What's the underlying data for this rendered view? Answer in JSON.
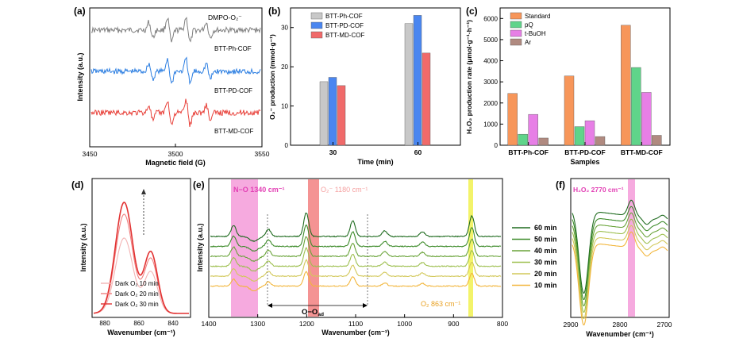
{
  "panels": {
    "a": {
      "label": "(a)",
      "xlabel": "Magnetic  field (G)",
      "ylabel": "Intensity (a.u.)",
      "xticks": [
        "3450",
        "3500",
        "3550"
      ],
      "annotation": "DMPO-O₂⁻",
      "series": [
        {
          "name": "BTT-Ph-COF",
          "color": "#7f7f7f"
        },
        {
          "name": "BTT-PD-COF",
          "color": "#2a7de1"
        },
        {
          "name": "BTT-MD-COF",
          "color": "#e8413a"
        }
      ]
    },
    "b": {
      "label": "(b)",
      "xlabel": "Time (min)",
      "ylabel": "O₂⁻ production (mmol·g⁻¹)",
      "legend": [
        "BTT-Ph-COF",
        "BTT-PD-COF",
        "BTT-MD-COF"
      ]
    },
    "c": {
      "label": "(c)",
      "xlabel": "Samples",
      "ylabel": "H₂O₂ production rate (μmol·g⁻¹·h⁻¹)",
      "legend": [
        "Standard",
        "pQ",
        "t-BuOH",
        "Ar"
      ]
    },
    "d": {
      "label": "(d)",
      "xlabel": "Wavenumber (cm⁻¹)",
      "ylabel": "Intensity (a.u.)",
      "xticks": [
        "880",
        "860",
        "840"
      ],
      "legend": [
        "Dark O₂ 10 min",
        "Dark O₂ 20 min",
        "Dark O₂ 30 min"
      ]
    },
    "e": {
      "label": "(e)",
      "xlabel": "Wavenumber (cm⁻¹)",
      "ylabel": "Intensity (a.u.)",
      "xticks": [
        "1400",
        "1300",
        "1200",
        "1100",
        "1000",
        "900",
        "800"
      ],
      "ann_no": "N−O 1340 cm⁻¹",
      "ann_o2": "O₂⁻ 1180 cm⁻¹",
      "ann_oo": "O−O",
      "ann_oo_sub": "ad",
      "ann_o2_863": "O₂ 863 cm⁻¹",
      "legend": [
        "60 min",
        "50 min",
        "40 min",
        "30 min",
        "20 min",
        "10 min"
      ],
      "colors": [
        "#1f6b1f",
        "#3d8b2a",
        "#6aa43a",
        "#9dbf4e",
        "#d2c85a",
        "#f2b63c"
      ]
    },
    "f": {
      "label": "(f)",
      "xlabel": "Wavenumber (cm⁻¹)",
      "xticks": [
        "2900",
        "2800",
        "2700"
      ],
      "annotation": "H₂O₂ 2770 cm⁻¹"
    }
  },
  "chart_data": [
    {
      "type": "bar",
      "panel": "b",
      "categories": [
        "30",
        "60"
      ],
      "series": [
        {
          "name": "BTT-Ph-COF",
          "values": [
            16.2,
            31.0
          ],
          "color": "#c8c8c8"
        },
        {
          "name": "BTT-PD-COF",
          "values": [
            17.3,
            33.1
          ],
          "color": "#4a86f0"
        },
        {
          "name": "BTT-MD-COF",
          "values": [
            15.2,
            23.5
          ],
          "color": "#f06a6a"
        }
      ],
      "xlabel": "Time (min)",
      "ylabel": "O₂⁻ production (mmol·g⁻¹)",
      "ylim": [
        0,
        35
      ],
      "yticks": [
        0,
        10,
        20,
        30
      ]
    },
    {
      "type": "bar",
      "panel": "c",
      "categories": [
        "BTT-Ph-COF",
        "BTT-PD-COF",
        "BTT-MD-COF"
      ],
      "series": [
        {
          "name": "Standard",
          "values": [
            2450,
            3280,
            5680
          ],
          "color": "#f7965a"
        },
        {
          "name": "pQ",
          "values": [
            520,
            880,
            3680
          ],
          "color": "#5fd48a"
        },
        {
          "name": "t-BuOH",
          "values": [
            1460,
            1160,
            2500
          ],
          "color": "#e77fe6"
        },
        {
          "name": "Ar",
          "values": [
            340,
            410,
            470
          ],
          "color": "#b08a80"
        }
      ],
      "xlabel": "Samples",
      "ylabel": "H₂O₂ production rate (μmol·g⁻¹·h⁻¹)",
      "ylim": [
        0,
        6500
      ],
      "yticks": [
        0,
        1000,
        2000,
        3000,
        4000,
        5000,
        6000
      ]
    }
  ]
}
